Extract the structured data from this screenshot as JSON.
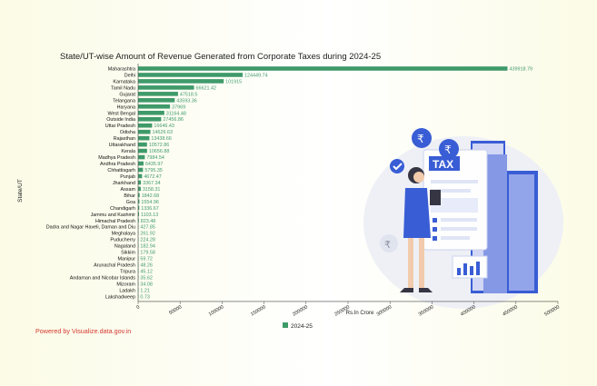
{
  "page": {
    "title": "State/UT-wise Amount of Revenue Generated from Corporate Taxes during 2024-25",
    "credit": "Powered by Visualize.data.gov.in"
  },
  "illustration": {
    "tax_label": "TAX",
    "icons": [
      "rupee-coin-icon",
      "rupee-coin-icon",
      "rupee-coin-icon",
      "check-icon",
      "bar-chart-icon",
      "document-icon"
    ]
  },
  "colors": {
    "bar": "#3f9a6a",
    "value_label": "#3f9a6a",
    "credit": "#d43a2f",
    "illustration_primary": "#2f55d4",
    "illustration_light": "#cfd6f5"
  },
  "chart_data": {
    "type": "bar",
    "orientation": "horizontal",
    "title": "State/UT-wise Amount of Revenue Generated from Corporate Taxes during 2024-25",
    "xlabel": "Rs.In Crore",
    "ylabel": "State/UT",
    "xlim": [
      0,
      500000
    ],
    "xticks": [
      0,
      50000,
      100000,
      150000,
      200000,
      250000,
      300000,
      350000,
      400000,
      450000,
      500000
    ],
    "xtick_labels": [
      "0",
      "50000",
      "100000",
      "150000",
      "200000",
      "250000",
      "300000",
      "350000",
      "400000",
      "450000",
      "500000"
    ],
    "legend": {
      "position": "bottom",
      "entries": [
        "2024-25"
      ]
    },
    "categories": [
      "Maharashtra",
      "Delhi",
      "Karnataka",
      "Tamil Nadu",
      "Gujarat",
      "Telangana",
      "Haryana",
      "West Bengal",
      "Outside India",
      "Uttar Pradesh",
      "Odisha",
      "Rajasthan",
      "Uttarakhand",
      "Kerala",
      "Madhya Pradesh",
      "Andhra Pradesh",
      "Chhattisgarh",
      "Punjab",
      "Jharkhand",
      "Assam",
      "Bihar",
      "Goa",
      "Chandigarh",
      "Jammu and Kashmir",
      "Himachal Pradesh",
      "Dadra and Nagar Haveli, Daman and Diu",
      "Meghalaya",
      "Puducherry",
      "Nagaland",
      "Sikkim",
      "Manipur",
      "Arunachal Pradesh",
      "Tripura",
      "Andaman and Nicobar Islands",
      "Mizoram",
      "Ladakh",
      "Lakshadweep"
    ],
    "series": [
      {
        "name": "2024-25",
        "values": [
          439918.79,
          124449.74,
          101915,
          66621.42,
          47518.5,
          43593.36,
          37969,
          31164.48,
          27456.86,
          16646.43,
          14626.63,
          13438.66,
          10572.86,
          10656.88,
          7984.54,
          6435.97,
          5795.35,
          4672.47,
          3367.34,
          3158.31,
          1842.68,
          1554.96,
          1336.67,
          1103.13,
          823.48,
          427.85,
          261.92,
          224.28,
          182.94,
          179.58,
          59.72,
          48.26,
          45.12,
          35.62,
          34.08,
          1.21,
          0.73
        ],
        "labels": [
          "439918.79",
          "124449.74",
          "101915",
          "66621.42",
          "47518.5",
          "43593.36",
          "37969",
          "31164.48",
          "27456.86",
          "16646.43",
          "14626.63",
          "13438.66",
          "10572.86",
          "10656.88",
          "7984.54",
          "6435.97",
          "5795.35",
          "4672.47",
          "3367.34",
          "3158.31",
          "1842.68",
          "1554.96",
          "1336.67",
          "1103.13",
          "823.48",
          "427.85",
          "261.92",
          "224.28",
          "182.94",
          "179.58",
          "59.72",
          "48.26",
          "45.12",
          "35.62",
          "34.08",
          "1.21",
          "0.73"
        ]
      }
    ],
    "grid": false
  }
}
